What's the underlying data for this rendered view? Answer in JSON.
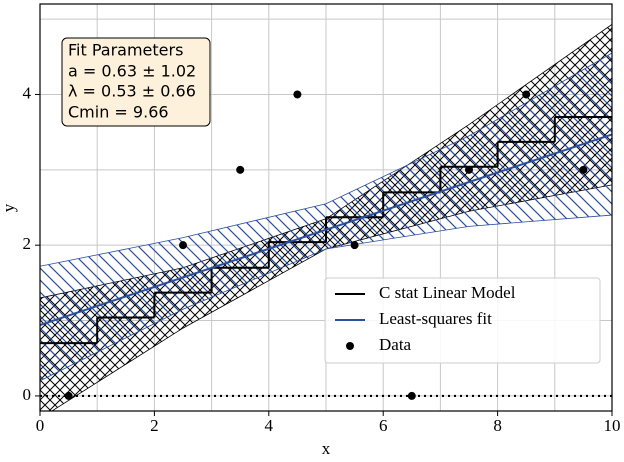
{
  "chart_data": {
    "type": "line",
    "xlabel": "x",
    "ylabel": "y",
    "xlim": [
      0,
      10
    ],
    "ylim": [
      -0.2,
      5.2
    ],
    "xticks": [
      0,
      2,
      4,
      6,
      8,
      10
    ],
    "yticks": [
      0,
      2,
      4
    ],
    "minor_xticks": [
      1,
      3,
      5,
      7,
      9
    ],
    "minor_yticks": [
      1,
      3,
      5
    ],
    "grid": true,
    "legend": "lower right",
    "hline": 0,
    "textbox": [
      "Fit Parameters",
      "a = 0.63 ± 1.02",
      "λ = 0.53 ± 0.66",
      "Cmin = 9.66"
    ],
    "step": {
      "name": "C stat Linear Model",
      "color": "#000000",
      "edges": [
        0,
        1,
        2,
        3,
        4,
        5,
        6,
        7,
        8,
        9,
        10
      ],
      "values": [
        0.7,
        1.04,
        1.37,
        1.7,
        2.04,
        2.37,
        2.7,
        3.04,
        3.37,
        3.7
      ]
    },
    "line": {
      "name": "Least-squares fit",
      "color": "#2a4ea0",
      "x": [
        0,
        10
      ],
      "values": [
        0.94,
        3.47
      ]
    },
    "scatter": {
      "name": "Data",
      "color": "#000000",
      "x": [
        0.5,
        2.5,
        3.5,
        4.5,
        5.5,
        6.5,
        7.5,
        8.5,
        9.5
      ],
      "values": [
        0,
        2,
        3,
        4,
        2,
        0,
        3,
        4,
        3
      ]
    },
    "bands": [
      {
        "color": "#000000",
        "x": [
          0,
          2.5,
          5,
          7.5,
          10
        ],
        "lower": [
          -0.3,
          0.9,
          1.95,
          2.45,
          2.8
        ],
        "upper": [
          1.3,
          1.7,
          2.35,
          3.6,
          4.93
        ]
      },
      {
        "color": "#2a4ea0",
        "x": [
          0,
          2.5,
          5,
          7.5,
          10
        ],
        "lower": [
          0.2,
          1.15,
          1.95,
          2.25,
          2.4
        ],
        "upper": [
          1.72,
          2.1,
          2.55,
          3.45,
          4.55
        ]
      }
    ]
  }
}
